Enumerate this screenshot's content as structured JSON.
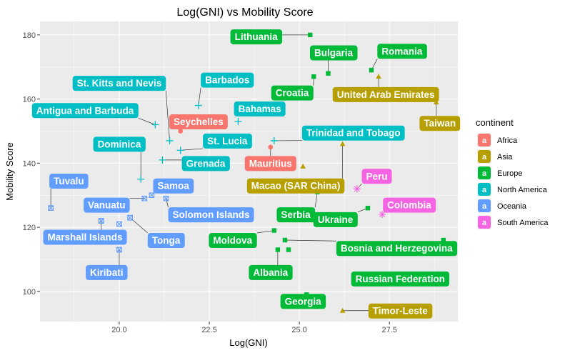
{
  "chart_data": {
    "type": "scatter",
    "title": "Log(GNI) vs Mobility Score",
    "xlabel": "Log(GNI)",
    "ylabel": "Mobility Score",
    "xlim": [
      17.8,
      29.4
    ],
    "ylim": [
      90.6,
      184.2
    ],
    "xticks": [
      20.0,
      22.5,
      25.0,
      27.5
    ],
    "xtick_labels": [
      "20.0",
      "22.5",
      "25.0",
      "27.5"
    ],
    "yticks": [
      100,
      120,
      140,
      160,
      180
    ],
    "ytick_labels": [
      "100",
      "120",
      "140",
      "160",
      "180"
    ],
    "grid": true,
    "legend": {
      "title": "continent",
      "position": "right",
      "key_glyph": "a",
      "entries": [
        {
          "name": "Africa",
          "color": "#F8766D"
        },
        {
          "name": "Asia",
          "color": "#B79F00"
        },
        {
          "name": "Europe",
          "color": "#00BA38"
        },
        {
          "name": "North America",
          "color": "#00BFC4"
        },
        {
          "name": "Oceania",
          "color": "#619CFF"
        },
        {
          "name": "South America",
          "color": "#F564E3"
        }
      ]
    },
    "points": [
      {
        "country": "Lithuania",
        "continent": "Europe",
        "x": 25.3,
        "y": 180,
        "label_x": 23.8,
        "label_y": 179.5
      },
      {
        "country": "Bulgaria",
        "continent": "Europe",
        "x": 25.8,
        "y": 168,
        "label_x": 25.95,
        "label_y": 174.5
      },
      {
        "country": "Romania",
        "continent": "Europe",
        "x": 27.0,
        "y": 169,
        "label_x": 27.85,
        "label_y": 175
      },
      {
        "country": "Croatia",
        "continent": "Europe",
        "x": 25.4,
        "y": 167,
        "label_x": 24.8,
        "label_y": 162
      },
      {
        "country": "United Arab Emirates",
        "continent": "Asia",
        "x": 27.2,
        "y": 167,
        "label_x": 27.4,
        "label_y": 161.5
      },
      {
        "country": "Taiwan",
        "continent": "Asia",
        "x": 28.8,
        "y": 159,
        "label_x": 28.9,
        "label_y": 152.5
      },
      {
        "country": "St. Kitts and Nevis",
        "continent": "North America",
        "x": 21.4,
        "y": 147,
        "label_x": 20.0,
        "label_y": 165
      },
      {
        "country": "Barbados",
        "continent": "North America",
        "x": 22.2,
        "y": 158,
        "label_x": 23.0,
        "label_y": 166
      },
      {
        "country": "Antigua and Barbuda",
        "continent": "North America",
        "x": 21.0,
        "y": 152,
        "label_x": 19.05,
        "label_y": 156.5
      },
      {
        "country": "Seychelles",
        "continent": "Africa",
        "x": 21.7,
        "y": 150,
        "label_x": 22.2,
        "label_y": 153
      },
      {
        "country": "Bahamas",
        "continent": "North America",
        "x": 23.3,
        "y": 153,
        "label_x": 23.9,
        "label_y": 157
      },
      {
        "country": "St. Lucia",
        "continent": "North America",
        "x": 21.7,
        "y": 144,
        "label_x": 23.0,
        "label_y": 147
      },
      {
        "country": "Trinidad and Tobago",
        "continent": "North America",
        "x": 24.3,
        "y": 147,
        "label_x": 26.5,
        "label_y": 149.5
      },
      {
        "country": "Dominica",
        "continent": "North America",
        "x": 20.6,
        "y": 135,
        "label_x": 20.0,
        "label_y": 146
      },
      {
        "country": "Grenada",
        "continent": "North America",
        "x": 21.2,
        "y": 141,
        "label_x": 22.4,
        "label_y": 140
      },
      {
        "country": "Mauritius",
        "continent": "Africa",
        "x": 24.2,
        "y": 145,
        "label_x": 24.2,
        "label_y": 140
      },
      {
        "country": "Asia point",
        "continent": "Asia",
        "x": 25.1,
        "y": 139,
        "label": false
      },
      {
        "country": "Samoa",
        "continent": "Oceania",
        "x": 20.9,
        "y": 130,
        "label_x": 21.5,
        "label_y": 133
      },
      {
        "country": "Macao (SAR China)",
        "continent": "Asia",
        "x": 26.2,
        "y": 146,
        "label_x": 24.9,
        "label_y": 133
      },
      {
        "country": "Peru",
        "continent": "South America",
        "x": 26.6,
        "y": 132,
        "label_x": 27.15,
        "label_y": 136
      },
      {
        "country": "Tuvalu",
        "continent": "Oceania",
        "x": 18.1,
        "y": 126,
        "label_x": 18.6,
        "label_y": 134.5
      },
      {
        "country": "Vanuatu",
        "continent": "Oceania",
        "x": 20.7,
        "y": 129,
        "label_x": 19.65,
        "label_y": 127
      },
      {
        "country": "Serbia",
        "continent": "Europe",
        "x": 25.5,
        "y": 131,
        "label_x": 24.9,
        "label_y": 124
      },
      {
        "country": "Solomon Islands",
        "continent": "Oceania",
        "x": 21.3,
        "y": 129,
        "label_x": 22.55,
        "label_y": 124
      },
      {
        "country": "Colombia",
        "continent": "South America",
        "x": 27.3,
        "y": 124,
        "label_x": 28.05,
        "label_y": 127
      },
      {
        "country": "Ukraine",
        "continent": "Europe",
        "x": 26.9,
        "y": 126,
        "label_x": 26.0,
        "label_y": 122.5
      },
      {
        "country": "Vanuatu pt",
        "continent": "Oceania",
        "x": 19.5,
        "y": 122,
        "label": false
      },
      {
        "country": "Oceania pt 2",
        "continent": "Oceania",
        "x": 20.0,
        "y": 121,
        "label": false
      },
      {
        "country": "Tonga",
        "continent": "Oceania",
        "x": 20.3,
        "y": 123,
        "label_x": 21.3,
        "label_y": 116
      },
      {
        "country": "Marshall Islands",
        "continent": "Oceania",
        "x": 19.5,
        "y": 122,
        "label_x": 19.05,
        "label_y": 117
      },
      {
        "country": "Moldova",
        "continent": "Europe",
        "x": 24.3,
        "y": 119,
        "label_x": 23.15,
        "label_y": 116
      },
      {
        "country": "Bosnia and Herzegovina",
        "continent": "Europe",
        "x": 24.6,
        "y": 116,
        "label_x": 27.7,
        "label_y": 113.5
      },
      {
        "country": "Europe pt",
        "continent": "Europe",
        "x": 29.0,
        "y": 116,
        "label": false
      },
      {
        "country": "Albania",
        "continent": "Europe",
        "x": 24.4,
        "y": 113,
        "label_x": 24.2,
        "label_y": 106
      },
      {
        "country": "Europe pt 2",
        "continent": "Europe",
        "x": 24.7,
        "y": 113,
        "label": false
      },
      {
        "country": "Kiribati",
        "continent": "Oceania",
        "x": 20.0,
        "y": 113,
        "label_x": 19.65,
        "label_y": 106
      },
      {
        "country": "Russian Federation",
        "continent": "Europe",
        "x": 27.0,
        "y": 103,
        "label_x": 27.8,
        "label_y": 104
      },
      {
        "country": "Georgia",
        "continent": "Europe",
        "x": 25.2,
        "y": 99,
        "label_x": 25.1,
        "label_y": 97
      },
      {
        "country": "Timor-Leste",
        "continent": "Asia",
        "x": 26.2,
        "y": 94,
        "label_x": 27.8,
        "label_y": 94
      }
    ]
  }
}
